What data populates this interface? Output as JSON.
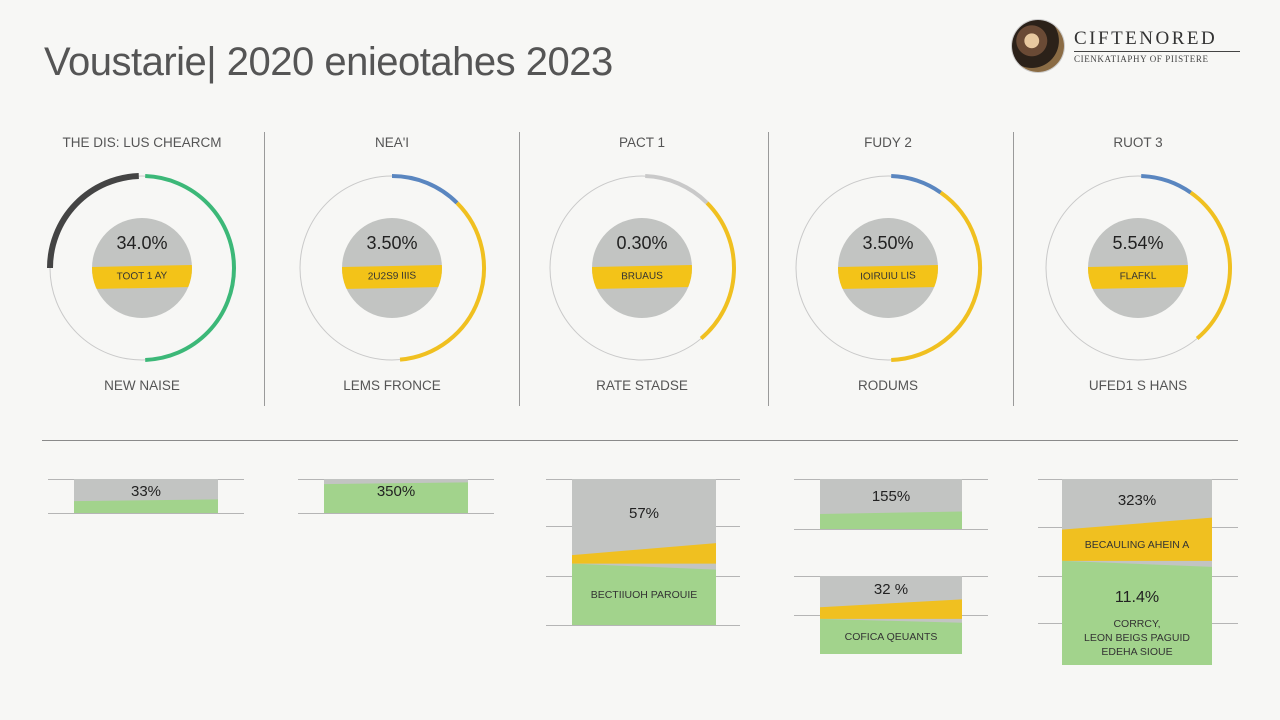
{
  "page": {
    "title": "Voustarie| 2020 enieotahes 2023",
    "brand": {
      "name": "CIFTENORED",
      "tagline": "CIENKATIAPHY OF PIISTERE"
    }
  },
  "colors": {
    "green": "#3cb878",
    "blue": "#5a86c0",
    "yellow": "#f0c020",
    "dark": "#444444",
    "grey": "#c2c4c2",
    "light_green": "#a2d38c",
    "track": "#c9c9c9"
  },
  "chart_data": [
    {
      "type": "pie",
      "charts": [
        {
          "title": "THE DIS: LUS CHEARCM",
          "value_label": "34.0%",
          "band_label": "TOOT 1 AY",
          "footer": "NEW NAISE",
          "arcs": [
            {
              "color": "dark",
              "start": 270,
              "end": 358
            },
            {
              "color": "green",
              "start": 2,
              "end": 90
            },
            {
              "color": "green",
              "start": 90,
              "end": 178
            }
          ]
        },
        {
          "title": "NEA'I",
          "value_label": "3.50%",
          "band_label": "2U2S9 IIIS",
          "footer": "LEMS FRONCE",
          "arcs": [
            {
              "color": "blue",
              "start": 0,
              "end": 45
            },
            {
              "color": "yellow",
              "start": 45,
              "end": 175
            }
          ]
        },
        {
          "title": "PACT 1",
          "value_label": "0.30%",
          "band_label": "BRUAUS",
          "footer": "RATE STADSE",
          "arcs": [
            {
              "color": "track",
              "start": 2,
              "end": 45
            },
            {
              "color": "yellow",
              "start": 45,
              "end": 140
            }
          ]
        },
        {
          "title": "FUDY 2",
          "value_label": "3.50%",
          "band_label": "IOIRUIU LIS",
          "footer": "RODUMS",
          "arcs": [
            {
              "color": "blue",
              "start": 2,
              "end": 35
            },
            {
              "color": "yellow",
              "start": 35,
              "end": 178
            }
          ]
        },
        {
          "title": "RUOT 3",
          "value_label": "5.54%",
          "band_label": "FLAFKL",
          "footer": "UFED1 S HANS",
          "arcs": [
            {
              "color": "blue",
              "start": 2,
              "end": 35
            },
            {
              "color": "yellow",
              "start": 35,
              "end": 140
            }
          ]
        }
      ]
    },
    {
      "type": "bar",
      "bars": [
        {
          "label": "33%",
          "grey": 0.65,
          "yellow": 0,
          "green": 0.35
        },
        {
          "label": "350%",
          "grey": 0.15,
          "yellow": 0,
          "green": 0.85
        },
        {
          "label": "57%",
          "grey": 0.48,
          "yellow": 0.1,
          "green": 0.42,
          "sub_label": "BECTIIUOH PAROUIE"
        },
        {
          "label": "155%",
          "grey": 0.7,
          "yellow": 0,
          "green": 0.3
        },
        {
          "label": "32 %",
          "grey": 0.35,
          "yellow": 0.2,
          "green": 0.45,
          "sub_label": "COFICA QEUANTS"
        },
        {
          "label": "323%",
          "grey": 0.24,
          "yellow": 0.2,
          "green": 0.56,
          "sub_label": "BECAULING AHEIN A",
          "green_value": "11.4%",
          "green_text": [
            "CORRCY,",
            "LEON BEIGS PAGUID",
            "EDEHA SIOUE"
          ]
        }
      ]
    }
  ]
}
